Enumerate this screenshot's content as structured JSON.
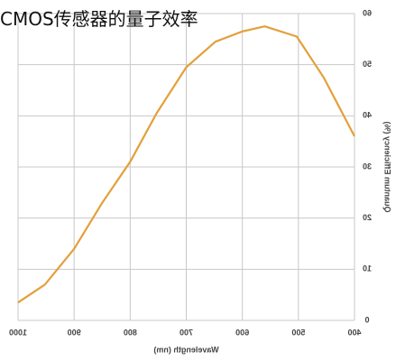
{
  "chart_data": {
    "type": "line",
    "title": "CMOS传感器的量子效率",
    "xlabel": "Wavelength (nm)",
    "ylabel": "Quantum Efficiency (%)",
    "x": [
      1000,
      952,
      900,
      850,
      800,
      753,
      700,
      648,
      600,
      560,
      503,
      455,
      400
    ],
    "series": [
      {
        "color": "#e3a03a",
        "values": [
          3.5,
          7,
          14,
          23,
          31,
          40.5,
          49.5,
          54.5,
          56.5,
          57.5,
          55.5,
          47.5,
          36
        ]
      }
    ],
    "xlim": [
      1000,
      400
    ],
    "xticks": [
      1000,
      900,
      800,
      700,
      600,
      500,
      400
    ],
    "ylim": [
      0,
      60
    ],
    "yticks": [
      0,
      10,
      20,
      30,
      40,
      50,
      60
    ],
    "grid": true
  }
}
